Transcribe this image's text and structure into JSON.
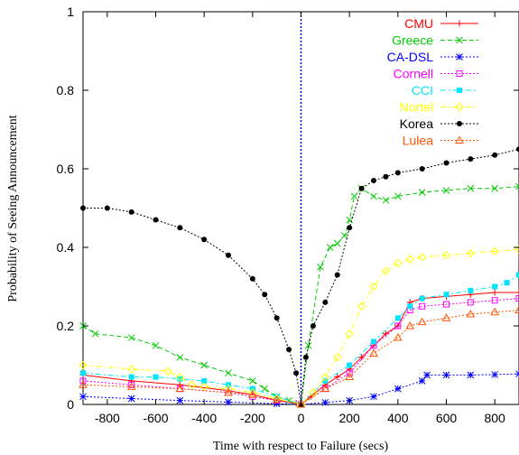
{
  "chart_data": {
    "type": "line",
    "title": "",
    "xlabel": "Time with respect to Failure (secs)",
    "ylabel": "Probability of Seeing Announcement",
    "xlim": [
      -900,
      900
    ],
    "ylim": [
      0,
      1
    ],
    "x_ticks": [
      -800,
      -600,
      -400,
      -200,
      0,
      200,
      400,
      600,
      800
    ],
    "y_ticks": [
      0,
      0.2,
      0.4,
      0.6,
      0.8,
      1
    ],
    "grid": false,
    "legend_position": "top-right",
    "reference_line_x": 0,
    "series": [
      {
        "name": "CMU",
        "color": "#ff0000",
        "dash": "solid",
        "marker": "plus",
        "points": [
          [
            -900,
            0.075
          ],
          [
            -700,
            0.06
          ],
          [
            -500,
            0.05
          ],
          [
            -300,
            0.035
          ],
          [
            -200,
            0.025
          ],
          [
            -100,
            0.01
          ],
          [
            -20,
            0.003
          ],
          [
            0,
            0
          ],
          [
            40,
            0.02
          ],
          [
            100,
            0.05
          ],
          [
            150,
            0.07
          ],
          [
            200,
            0.09
          ],
          [
            250,
            0.12
          ],
          [
            300,
            0.15
          ],
          [
            350,
            0.18
          ],
          [
            400,
            0.2
          ],
          [
            450,
            0.26
          ],
          [
            500,
            0.27
          ],
          [
            600,
            0.275
          ],
          [
            700,
            0.28
          ],
          [
            800,
            0.285
          ],
          [
            900,
            0.285
          ]
        ]
      },
      {
        "name": "Greece",
        "color": "#00cc00",
        "dash": "5,3",
        "marker": "cross",
        "points": [
          [
            -900,
            0.2
          ],
          [
            -850,
            0.18
          ],
          [
            -700,
            0.17
          ],
          [
            -600,
            0.15
          ],
          [
            -500,
            0.12
          ],
          [
            -400,
            0.1
          ],
          [
            -300,
            0.08
          ],
          [
            -200,
            0.06
          ],
          [
            -150,
            0.04
          ],
          [
            -100,
            0.02
          ],
          [
            -50,
            0.01
          ],
          [
            0,
            0
          ],
          [
            30,
            0.15
          ],
          [
            80,
            0.35
          ],
          [
            120,
            0.4
          ],
          [
            150,
            0.41
          ],
          [
            180,
            0.43
          ],
          [
            200,
            0.47
          ],
          [
            220,
            0.53
          ],
          [
            250,
            0.55
          ],
          [
            300,
            0.53
          ],
          [
            350,
            0.52
          ],
          [
            400,
            0.53
          ],
          [
            500,
            0.54
          ],
          [
            600,
            0.545
          ],
          [
            700,
            0.55
          ],
          [
            800,
            0.55
          ],
          [
            900,
            0.555
          ]
        ]
      },
      {
        "name": "CA-DSL",
        "color": "#0000ff",
        "dash": "2,2",
        "marker": "star",
        "points": [
          [
            -900,
            0.02
          ],
          [
            -700,
            0.015
          ],
          [
            -500,
            0.01
          ],
          [
            -300,
            0.006
          ],
          [
            -100,
            0.002
          ],
          [
            0,
            0
          ],
          [
            100,
            0.005
          ],
          [
            200,
            0.01
          ],
          [
            300,
            0.02
          ],
          [
            400,
            0.04
          ],
          [
            500,
            0.06
          ],
          [
            520,
            0.075
          ],
          [
            600,
            0.075
          ],
          [
            700,
            0.075
          ],
          [
            800,
            0.076
          ],
          [
            900,
            0.078
          ]
        ]
      },
      {
        "name": "Cornell",
        "color": "#ff00ff",
        "dash": "2,2",
        "marker": "square-open",
        "points": [
          [
            -900,
            0.06
          ],
          [
            -700,
            0.05
          ],
          [
            -500,
            0.04
          ],
          [
            -300,
            0.03
          ],
          [
            -200,
            0.02
          ],
          [
            -100,
            0.01
          ],
          [
            0,
            0
          ],
          [
            100,
            0.04
          ],
          [
            200,
            0.08
          ],
          [
            300,
            0.15
          ],
          [
            400,
            0.2
          ],
          [
            450,
            0.24
          ],
          [
            500,
            0.25
          ],
          [
            600,
            0.255
          ],
          [
            700,
            0.26
          ],
          [
            800,
            0.265
          ],
          [
            900,
            0.27
          ]
        ]
      },
      {
        "name": "CCI",
        "color": "#00e5ff",
        "dash": "6,3,2,3",
        "marker": "square-filled",
        "points": [
          [
            -900,
            0.08
          ],
          [
            -700,
            0.07
          ],
          [
            -600,
            0.07
          ],
          [
            -500,
            0.065
          ],
          [
            -400,
            0.06
          ],
          [
            -300,
            0.05
          ],
          [
            -200,
            0.04
          ],
          [
            -100,
            0.02
          ],
          [
            0,
            0
          ],
          [
            100,
            0.06
          ],
          [
            200,
            0.1
          ],
          [
            300,
            0.16
          ],
          [
            400,
            0.22
          ],
          [
            450,
            0.25
          ],
          [
            500,
            0.27
          ],
          [
            600,
            0.28
          ],
          [
            700,
            0.29
          ],
          [
            800,
            0.3
          ],
          [
            850,
            0.31
          ],
          [
            900,
            0.33
          ]
        ]
      },
      {
        "name": "Nortel",
        "color": "#ffff00",
        "dash": "6,3,2,3",
        "marker": "diamond",
        "points": [
          [
            -900,
            0.1
          ],
          [
            -700,
            0.09
          ],
          [
            -550,
            0.085
          ],
          [
            -500,
            0.07
          ],
          [
            -450,
            0.05
          ],
          [
            -400,
            0.045
          ],
          [
            -300,
            0.04
          ],
          [
            -200,
            0.03
          ],
          [
            -100,
            0.015
          ],
          [
            0,
            0
          ],
          [
            50,
            0.03
          ],
          [
            100,
            0.07
          ],
          [
            150,
            0.12
          ],
          [
            200,
            0.18
          ],
          [
            250,
            0.25
          ],
          [
            300,
            0.3
          ],
          [
            350,
            0.34
          ],
          [
            400,
            0.36
          ],
          [
            450,
            0.37
          ],
          [
            500,
            0.375
          ],
          [
            600,
            0.38
          ],
          [
            700,
            0.385
          ],
          [
            800,
            0.39
          ],
          [
            900,
            0.395
          ]
        ]
      },
      {
        "name": "Korea",
        "color": "#000000",
        "dash": "2,2",
        "marker": "circle-filled",
        "points": [
          [
            -900,
            0.5
          ],
          [
            -800,
            0.5
          ],
          [
            -700,
            0.49
          ],
          [
            -600,
            0.47
          ],
          [
            -500,
            0.45
          ],
          [
            -400,
            0.42
          ],
          [
            -300,
            0.38
          ],
          [
            -200,
            0.32
          ],
          [
            -150,
            0.28
          ],
          [
            -100,
            0.22
          ],
          [
            -50,
            0.14
          ],
          [
            -20,
            0.08
          ],
          [
            0,
            0
          ],
          [
            20,
            0.12
          ],
          [
            50,
            0.2
          ],
          [
            100,
            0.26
          ],
          [
            150,
            0.33
          ],
          [
            200,
            0.45
          ],
          [
            250,
            0.55
          ],
          [
            300,
            0.57
          ],
          [
            350,
            0.58
          ],
          [
            400,
            0.59
          ],
          [
            500,
            0.6
          ],
          [
            600,
            0.615
          ],
          [
            700,
            0.625
          ],
          [
            800,
            0.635
          ],
          [
            900,
            0.65
          ]
        ]
      },
      {
        "name": "Lulea",
        "color": "#ff5500",
        "dash": "2,2",
        "marker": "triangle",
        "points": [
          [
            -900,
            0.05
          ],
          [
            -700,
            0.045
          ],
          [
            -500,
            0.04
          ],
          [
            -300,
            0.03
          ],
          [
            -200,
            0.025
          ],
          [
            -100,
            0.012
          ],
          [
            0,
            0
          ],
          [
            100,
            0.04
          ],
          [
            200,
            0.07
          ],
          [
            300,
            0.13
          ],
          [
            400,
            0.17
          ],
          [
            450,
            0.2
          ],
          [
            500,
            0.21
          ],
          [
            600,
            0.22
          ],
          [
            700,
            0.23
          ],
          [
            800,
            0.235
          ],
          [
            900,
            0.24
          ]
        ]
      }
    ]
  }
}
